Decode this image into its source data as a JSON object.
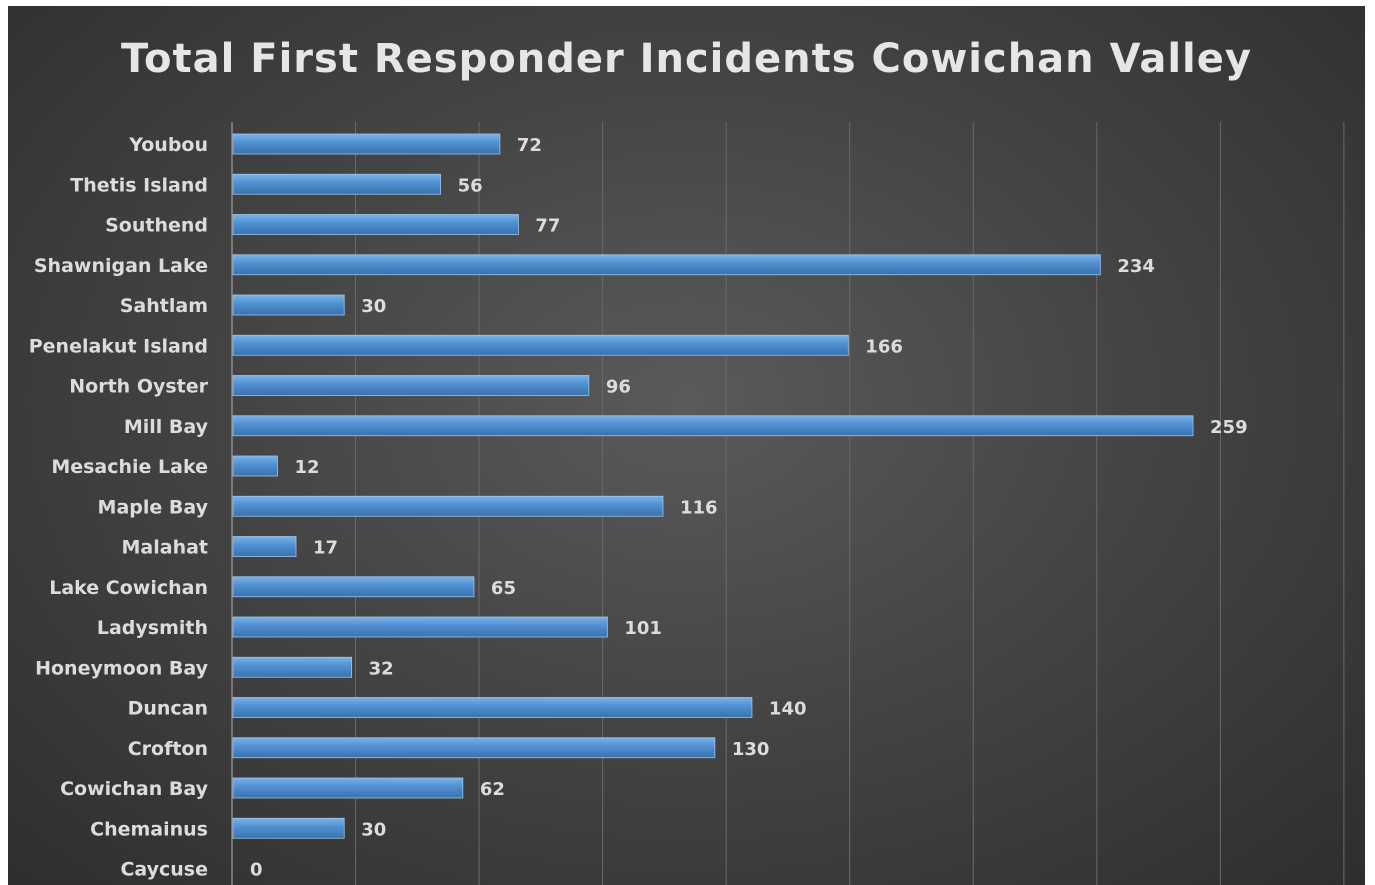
{
  "chart_data": {
    "type": "bar",
    "orientation": "horizontal",
    "title": "Total First Responder Incidents Cowichan Valley",
    "categories": [
      "Youbou",
      "Thetis Island",
      "Southend",
      "Shawnigan Lake",
      "Sahtlam",
      "Penelakut Island",
      "North Oyster",
      "Mill Bay",
      "Mesachie Lake",
      "Maple Bay",
      "Malahat",
      "Lake Cowichan",
      "Ladysmith",
      "Honeymoon Bay",
      "Duncan",
      "Crofton",
      "Cowichan Bay",
      "Chemainus",
      "Caycuse"
    ],
    "values": [
      72,
      56,
      77,
      234,
      30,
      166,
      96,
      259,
      12,
      116,
      17,
      65,
      101,
      32,
      140,
      130,
      62,
      30,
      0
    ],
    "xlim": [
      0,
      300
    ],
    "x_gridline_step": 33.33,
    "grid": true,
    "data_labels": true,
    "legend": "none",
    "colors": {
      "bar": "#4f8fd0",
      "bar_highlight": "#7ab1e6",
      "text": "#dcdcdc",
      "title": "#e6e6e6",
      "grid": "#6a6a6a",
      "background": "#454545"
    }
  }
}
